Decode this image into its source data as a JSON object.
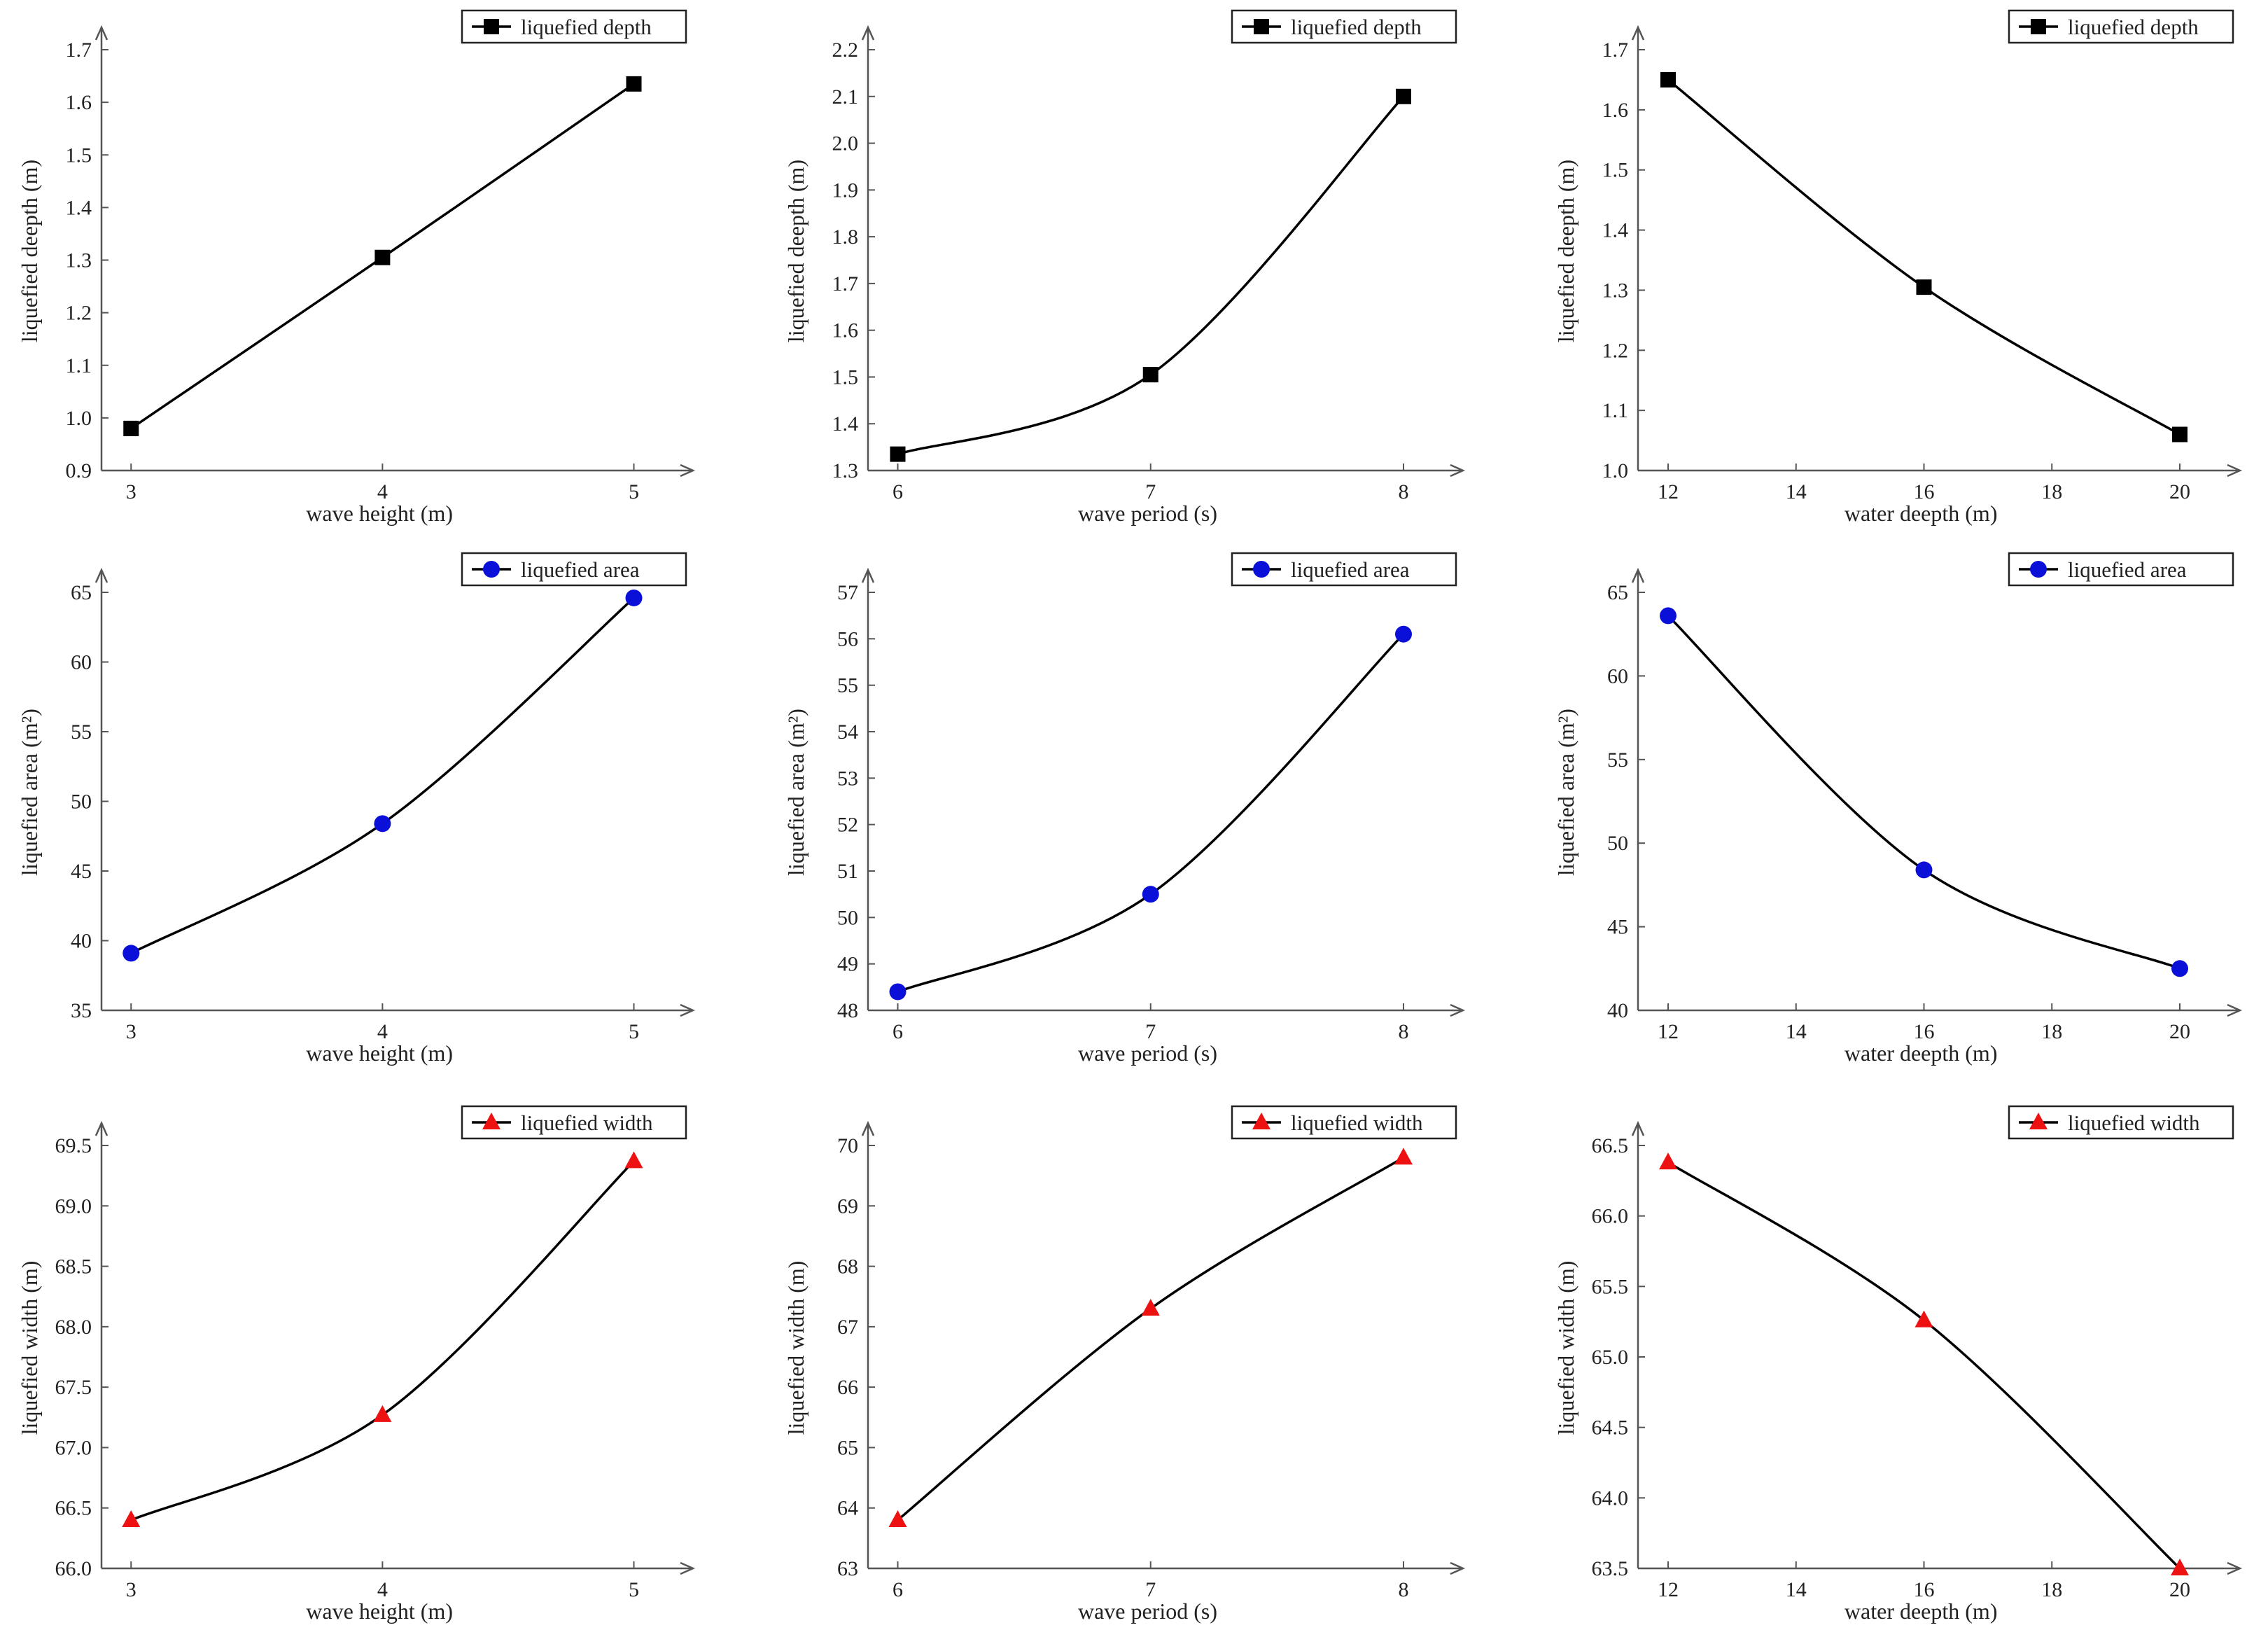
{
  "colors": {
    "axis": "#555555",
    "line": "#000000",
    "depth": "#000000",
    "area": "#0a10d8",
    "width": "#ee1111"
  },
  "chart_data": [
    {
      "type": "line",
      "xlabel": "wave height (m)",
      "ylabel": "liquefied deepth (m)",
      "legend": "liquefied depth",
      "marker": "square",
      "x": [
        3,
        4,
        5
      ],
      "y": [
        0.98,
        1.305,
        1.635
      ],
      "ylim": [
        0.9,
        1.7
      ],
      "yticks": [
        "0.9",
        "1.0",
        "1.1",
        "1.2",
        "1.3",
        "1.4",
        "1.5",
        "1.6",
        "1.7"
      ],
      "xticks": [
        "3",
        "4",
        "5"
      ]
    },
    {
      "type": "line",
      "xlabel": "wave period (s)",
      "ylabel": "liquefied deepth (m)",
      "legend": "liquefied depth",
      "marker": "square",
      "x": [
        6,
        7,
        8
      ],
      "y": [
        1.335,
        1.505,
        2.1
      ],
      "ylim": [
        1.3,
        2.2
      ],
      "yticks": [
        "1.3",
        "1.4",
        "1.5",
        "1.6",
        "1.7",
        "1.8",
        "1.9",
        "2.0",
        "2.1",
        "2.2"
      ],
      "xticks": [
        "6",
        "7",
        "8"
      ]
    },
    {
      "type": "line",
      "xlabel": "water deepth (m)",
      "ylabel": "liquefied deepth (m)",
      "legend": "liquefied depth",
      "marker": "square",
      "x": [
        12,
        16,
        20
      ],
      "y": [
        1.65,
        1.305,
        1.06
      ],
      "ylim": [
        1.0,
        1.7
      ],
      "yticks": [
        "1.0",
        "1.1",
        "1.2",
        "1.3",
        "1.4",
        "1.5",
        "1.6",
        "1.7"
      ],
      "xticks": [
        "12",
        "14",
        "16",
        "18",
        "20"
      ]
    },
    {
      "type": "line",
      "xlabel": "wave height (m)",
      "ylabel": "liquefied area (m²)",
      "legend": "liquefied area",
      "marker": "circle",
      "x": [
        3,
        4,
        5
      ],
      "y": [
        39.1,
        48.4,
        64.6
      ],
      "ylim": [
        35,
        65
      ],
      "yticks": [
        "35",
        "40",
        "45",
        "50",
        "55",
        "60",
        "65"
      ],
      "xticks": [
        "3",
        "4",
        "5"
      ]
    },
    {
      "type": "line",
      "xlabel": "wave period (s)",
      "ylabel": "liquefied area (m²)",
      "legend": "liquefied area",
      "marker": "circle",
      "x": [
        6,
        7,
        8
      ],
      "y": [
        48.4,
        50.5,
        56.1
      ],
      "ylim": [
        48,
        57
      ],
      "yticks": [
        "48",
        "49",
        "50",
        "51",
        "52",
        "53",
        "54",
        "55",
        "56",
        "57"
      ],
      "xticks": [
        "6",
        "7",
        "8"
      ]
    },
    {
      "type": "line",
      "xlabel": "water deepth (m)",
      "ylabel": "liquefied area (m²)",
      "legend": "liquefied area",
      "marker": "circle",
      "x": [
        12,
        16,
        20
      ],
      "y": [
        63.6,
        48.4,
        42.5
      ],
      "ylim": [
        40,
        65
      ],
      "yticks": [
        "40",
        "45",
        "50",
        "55",
        "60",
        "65"
      ],
      "xticks": [
        "12",
        "14",
        "16",
        "18",
        "20"
      ]
    },
    {
      "type": "line",
      "xlabel": "wave height (m)",
      "ylabel": "liquefied width (m)",
      "legend": "liquefied width",
      "marker": "triangle",
      "x": [
        3,
        4,
        5
      ],
      "y": [
        66.4,
        67.27,
        69.37
      ],
      "ylim": [
        66.0,
        69.5
      ],
      "yticks": [
        "66.0",
        "66.5",
        "67.0",
        "67.5",
        "68.0",
        "68.5",
        "69.0",
        "69.5"
      ],
      "xticks": [
        "3",
        "4",
        "5"
      ]
    },
    {
      "type": "line",
      "xlabel": "wave period (s)",
      "ylabel": "liquefied width (m)",
      "legend": "liquefied width",
      "marker": "triangle",
      "x": [
        6,
        7,
        8
      ],
      "y": [
        63.8,
        67.3,
        69.8
      ],
      "ylim": [
        63,
        70
      ],
      "yticks": [
        "63",
        "64",
        "65",
        "66",
        "67",
        "68",
        "69",
        "70"
      ],
      "xticks": [
        "6",
        "7",
        "8"
      ]
    },
    {
      "type": "line",
      "xlabel": "water deepth (m)",
      "ylabel": "liquefied width (m)",
      "legend": "liquefied width",
      "marker": "triangle",
      "x": [
        12,
        16,
        20
      ],
      "y": [
        66.38,
        65.26,
        63.5
      ],
      "ylim": [
        63.5,
        66.5
      ],
      "yticks": [
        "63.5",
        "64.0",
        "64.5",
        "65.0",
        "65.5",
        "66.0",
        "66.5"
      ],
      "xticks": [
        "12",
        "14",
        "16",
        "18",
        "20"
      ]
    }
  ]
}
